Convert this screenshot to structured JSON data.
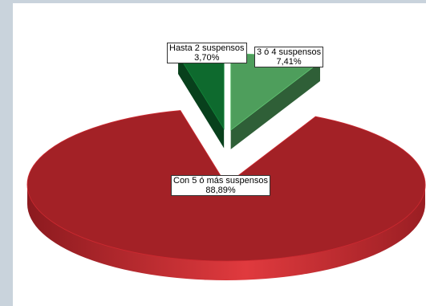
{
  "chart_data": {
    "type": "pie",
    "three_d": true,
    "exploded": true,
    "slices": [
      {
        "category": "Hasta 2 suspensos",
        "percent_label": "3,70%",
        "value": 3.7,
        "color": "#0e6a2e"
      },
      {
        "category": "3 ó 4 suspensos",
        "percent_label": "7,41%",
        "value": 7.41,
        "color": "#4e9e5c"
      },
      {
        "category": "Con 5 ó más suspensos",
        "percent_label": "88,89%",
        "value": 88.89,
        "color": "#a32126"
      }
    ],
    "title": "",
    "legend": "none"
  }
}
